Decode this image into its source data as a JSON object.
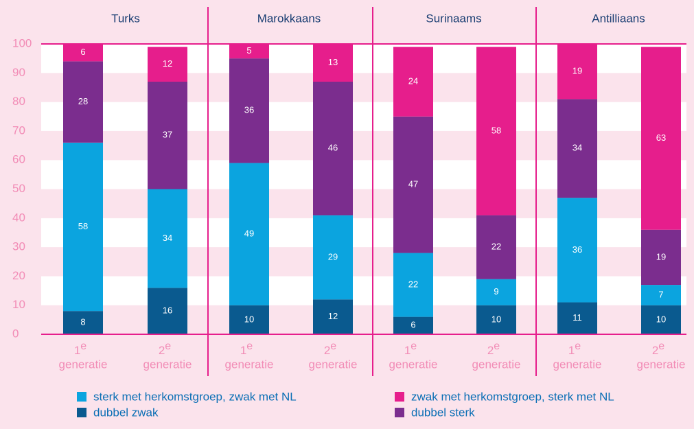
{
  "chart_data": {
    "type": "stacked_bar",
    "groups": [
      "Turks",
      "Marokkaans",
      "Surinaams",
      "Antilliaans"
    ],
    "subcategories": [
      "1",
      "2"
    ],
    "subcategory_suffix": "e",
    "subcategory_word": "generatie",
    "series": [
      {
        "name": "dubbel zwak",
        "color": "#0a5a8f",
        "values": [
          8,
          16,
          10,
          12,
          6,
          10,
          11,
          10
        ]
      },
      {
        "name": "sterk met herkomstgroep, zwak met NL",
        "color": "#0ba4df",
        "values": [
          58,
          34,
          49,
          29,
          22,
          9,
          36,
          7
        ]
      },
      {
        "name": "dubbel sterk",
        "color": "#7b2d8e",
        "values": [
          28,
          37,
          36,
          46,
          47,
          22,
          34,
          19
        ]
      },
      {
        "name": "zwak met herkomstgroep, sterk met NL",
        "color": "#e61e8c",
        "values": [
          6,
          12,
          5,
          13,
          24,
          58,
          19,
          63
        ]
      }
    ],
    "ylim": [
      0,
      100
    ],
    "yticks": [
      0,
      10,
      20,
      30,
      40,
      50,
      60,
      70,
      80,
      90,
      100
    ],
    "grid": true
  }
}
